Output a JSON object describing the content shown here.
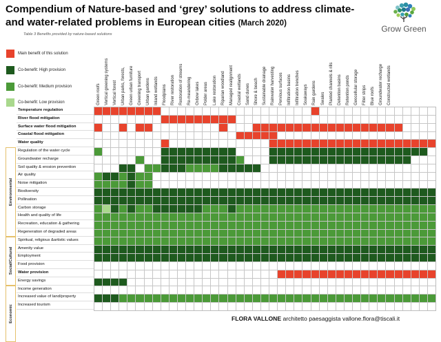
{
  "header": {
    "title_main": "Compendium of Nature-based and ‘grey’ solutions to address climate- and water-related problems in European cities ",
    "title_date": "(March 2020)",
    "table_caption": "Table 3 Benefits provided by nature-based solutions",
    "logo_text": "Grow Green"
  },
  "legend": [
    {
      "label": "Main benefit of this solution",
      "color": "#e8432c"
    },
    {
      "label": "Co-benefit: High provision",
      "color": "#1e5a1e"
    },
    {
      "label": "Co-benefit: Medium provision",
      "color": "#4b9a38"
    },
    {
      "label": "Co-benefit: Low provision",
      "color": "#a9d88d"
    }
  ],
  "columns": [
    "Green roofs",
    "Vertical greening systems",
    "Vertical forest",
    "Urban parks, forests,",
    "Green urban furniture",
    "Greening transport",
    "Urban gardens",
    "Inland wetlands",
    "Floodplains",
    "River restoration",
    "Restoration of streams",
    "Re-meandering",
    "Oxbow lakes",
    "Polder areas",
    "Lake restoration",
    "Riparian woodland",
    "Managed realignment",
    "Coastal wetlands",
    "Sand dunes",
    "Shore & beach",
    "Sustainable drainage",
    "Rainwater harvesting",
    "Pervious surfaces",
    "Infiltration basins",
    "Infiltration trenches",
    "Soakaways",
    "Rain gardens",
    "Swales",
    "Planted channels & rills",
    "Detention basins",
    "Retention ponds",
    "Geocellular storage",
    "Filter strips",
    "Blue roofs",
    "Groundwater recharge",
    "Constructed wetlands",
    "",
    "",
    "",
    "",
    ""
  ],
  "categories": [
    {
      "label": "Environmental",
      "from": 5,
      "to": 15
    },
    {
      "label": "Social/Cultural",
      "from": 16,
      "to": 21
    },
    {
      "label": "Economic",
      "from": 22,
      "to": 28
    }
  ],
  "rows": [
    {
      "label": "Temperature regulation",
      "bold": true,
      "cells": "11111111000000000000000000100000000000000"
    },
    {
      "label": "River flood mitigation",
      "bold": true,
      "cells": "00000000111111111000000000000000000000000"
    },
    {
      "label": "Surface water flood mitigation",
      "bold": true,
      "cells": "10010110000000010001111111111111111110000"
    },
    {
      "label": "Coastal flood mitigation",
      "bold": true,
      "cells": "00000000000000000111110000000000000000000"
    },
    {
      "label": "Water quality",
      "bold": true,
      "cells": "00000000100000000000011111111111111111111"
    },
    {
      "label": "Regulation of the water cycle",
      "bold": false,
      "cells": "30000000222222222000022222222222222222220"
    },
    {
      "label": "Groundwater recharge",
      "bold": false,
      "cells": "00000300222222222300022222222222222222000"
    },
    {
      "label": "Soil quality & erosion prevention",
      "bold": false,
      "cells": "00022033222333322222000000000000000000000"
    },
    {
      "label": "Air quality",
      "bold": false,
      "cells": "32232330000000000000000000000000000000000"
    },
    {
      "label": "Noise mitigation",
      "bold": false,
      "cells": "33332330000000000000000000000000000000000"
    },
    {
      "label": "Biodiversity",
      "bold": false,
      "cells": "22222222222222222222222222222222222222222"
    },
    {
      "label": "Pollination",
      "bold": false,
      "cells": "22222222222222222222222222222222222222222"
    },
    {
      "label": "Carbon storage",
      "bold": false,
      "cells": "34232332222223332333333333333333333333333"
    },
    {
      "label": "Health and quality of life",
      "bold": false,
      "cells": "33333333333333333333333333333333333333333"
    },
    {
      "label": "Recreation, education & gathering",
      "bold": false,
      "cells": "33333333333333333333333333333333333333333"
    },
    {
      "label": "Regeneration of degraded areas",
      "bold": false,
      "cells": "33333333333333333333333333333333333333333"
    },
    {
      "label": "Spiritual, religious &artistic values",
      "bold": false,
      "cells": "33333333333333333333333333333333333333333"
    },
    {
      "label": "Amenity value",
      "bold": false,
      "cells": "22222222222222222222222222222222222222222"
    },
    {
      "label": "Employment",
      "bold": false,
      "cells": "22222222222222222222222222222222222222222"
    },
    {
      "label": "Food provision",
      "bold": false,
      "cells": "00000000000000000000000000000000000000000"
    },
    {
      "label": "Water provision",
      "bold": true,
      "cells": "00000000000000000000001111111111111111111"
    },
    {
      "label": "Energy savings",
      "bold": false,
      "cells": "22220000000000000000000000000000000000000"
    },
    {
      "label": "Income generation",
      "bold": false,
      "cells": "00000000000000000000000000000000000000000"
    },
    {
      "label": "Increased value of land/property",
      "bold": false,
      "cells": "22233333333333333333333333333333333333333"
    },
    {
      "label": "Increased tourism",
      "bold": false,
      "cells": "00000000000000000000000000000000000000000"
    }
  ],
  "footer": {
    "name": "FLORA VALLONE",
    "rest": " architetto paesaggista vallone.flora@tiscali.it"
  }
}
